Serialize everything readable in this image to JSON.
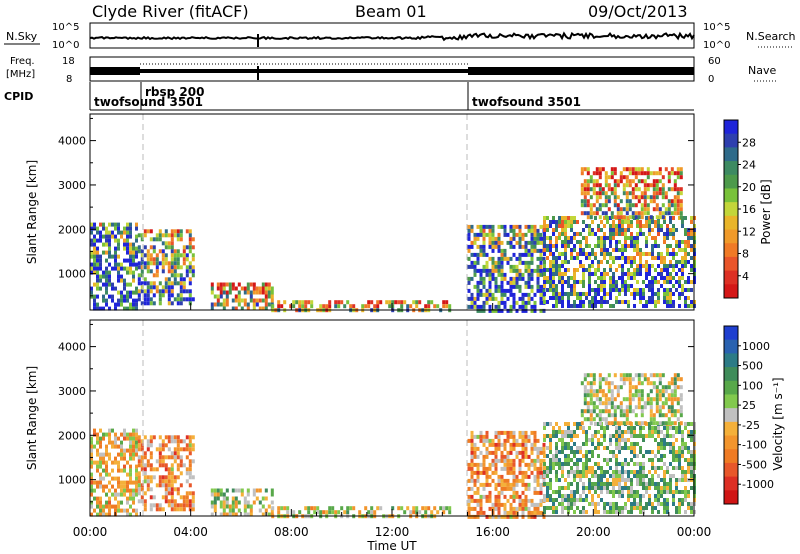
{
  "header": {
    "station": "Clyde River (fitACF)",
    "beam": "Beam 01",
    "date": "09/Oct/2013"
  },
  "strips": {
    "nsky": {
      "label": "N.Sky",
      "right_label": "N.Search",
      "ticks_left": [
        "10^5",
        "10^0"
      ],
      "ticks_right": [
        "10^5",
        "10^0"
      ]
    },
    "freq": {
      "label_line1": "Freq.",
      "label_line2": "[MHz]",
      "ticks_left": [
        "18",
        "8"
      ],
      "right_label": "Nave",
      "ticks_right": [
        "60",
        "0"
      ]
    },
    "cpid": {
      "label": "CPID"
    }
  },
  "cpid_segments": [
    {
      "name": "twofsound 3501",
      "start_hour": 0,
      "end_hour": 2
    },
    {
      "name": "rbsp 200",
      "start_hour": 2,
      "end_hour": 15
    },
    {
      "name": "twofsound 3501",
      "start_hour": 15,
      "end_hour": 24
    }
  ],
  "chart_data": [
    {
      "type": "heatmap",
      "panel": "power",
      "ylabel": "Slant Range [km]",
      "ylim": [
        180,
        4600
      ],
      "yticks": [
        1000,
        2000,
        3000,
        4000
      ],
      "xlim": [
        0,
        24
      ],
      "colorbar": {
        "label": "Power [dB]",
        "ticks": [
          "28",
          "24",
          "20",
          "16",
          "12",
          "8",
          "4"
        ],
        "range": [
          0,
          30
        ],
        "colors": [
          "#1f24d9",
          "#2e3fae",
          "#2f6b8a",
          "#3d8a62",
          "#4d9a4b",
          "#79c23a",
          "#c3d63a",
          "#e9b52a",
          "#f09a2a",
          "#f07a26",
          "#e9552a",
          "#dd3024",
          "#d41717"
        ]
      },
      "echo_regions": [
        {
          "t": [
            0.0,
            1.9
          ],
          "r": [
            250,
            2150
          ],
          "level": 0.65
        },
        {
          "t": [
            1.9,
            4.1
          ],
          "r": [
            300,
            2000
          ],
          "level": 0.45
        },
        {
          "t": [
            4.8,
            7.2
          ],
          "r": [
            180,
            800
          ],
          "level": 0.3
        },
        {
          "t": [
            7.2,
            14.3
          ],
          "r": [
            180,
            400
          ],
          "level": 0.25
        },
        {
          "t": [
            15.0,
            18.0
          ],
          "r": [
            180,
            2100
          ],
          "level": 0.6
        },
        {
          "t": [
            18.0,
            24.0
          ],
          "r": [
            250,
            2300
          ],
          "level": 0.55
        },
        {
          "t": [
            19.5,
            23.5
          ],
          "r": [
            2300,
            3400
          ],
          "level": 0.2
        }
      ]
    },
    {
      "type": "heatmap",
      "panel": "velocity",
      "ylabel": "Slant Range [km]",
      "ylim": [
        180,
        4600
      ],
      "yticks": [
        1000,
        2000,
        3000,
        4000
      ],
      "xlim": [
        0,
        24
      ],
      "xticks": [
        "00:00",
        "04:00",
        "08:00",
        "12:00",
        "16:00",
        "20:00",
        "00:00"
      ],
      "xlabel": "Time UT",
      "colorbar": {
        "label": "Velocity [m s⁻¹]",
        "ticks": [
          "1000",
          "500",
          "100",
          "25",
          "-25",
          "-100",
          "-500",
          "-1000"
        ],
        "range": [
          -1000,
          1000
        ],
        "colors": [
          "#1f3fcf",
          "#2a62b0",
          "#2c7b86",
          "#3f8c5a",
          "#58a84a",
          "#82c94e",
          "#c0c0c0",
          "#f4b03a",
          "#f2952d",
          "#ef7b24",
          "#e8572a",
          "#dd2f24",
          "#d01515"
        ]
      },
      "echo_regions": [
        {
          "t": [
            0.0,
            1.9
          ],
          "r": [
            250,
            2150
          ],
          "level": -0.15
        },
        {
          "t": [
            1.9,
            4.1
          ],
          "r": [
            300,
            2000
          ],
          "level": -0.35
        },
        {
          "t": [
            4.8,
            7.2
          ],
          "r": [
            180,
            800
          ],
          "level": 0.1
        },
        {
          "t": [
            7.2,
            14.3
          ],
          "r": [
            180,
            400
          ],
          "level": 0.0
        },
        {
          "t": [
            15.0,
            18.0
          ],
          "r": [
            180,
            2100
          ],
          "level": -0.35
        },
        {
          "t": [
            18.0,
            24.0
          ],
          "r": [
            250,
            2300
          ],
          "level": 0.25
        },
        {
          "t": [
            19.5,
            23.5
          ],
          "r": [
            2300,
            3400
          ],
          "level": 0.05
        }
      ]
    }
  ]
}
